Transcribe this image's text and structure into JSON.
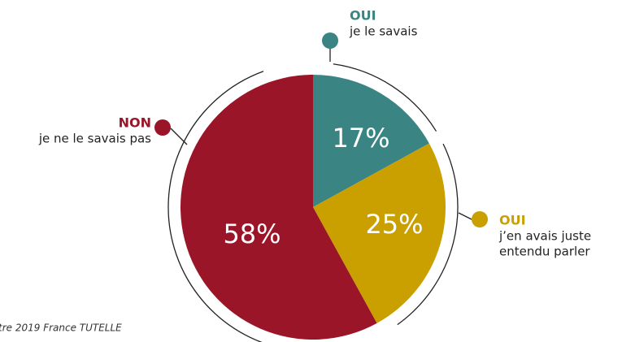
{
  "chart_data": {
    "type": "pie",
    "categories": [
      "OUI",
      "OUI",
      "NON"
    ],
    "descriptions": [
      [
        "je le savais"
      ],
      [
        "j’en avais juste",
        "entendu parler"
      ],
      [
        "je ne le savais pas"
      ]
    ],
    "values": [
      17,
      25,
      58
    ],
    "value_labels": [
      "17%",
      "25%",
      "58%"
    ],
    "colors": [
      "#3a8483",
      "#c9a000",
      "#9b1528"
    ],
    "source": "tre 2019 France TUTELLE"
  }
}
